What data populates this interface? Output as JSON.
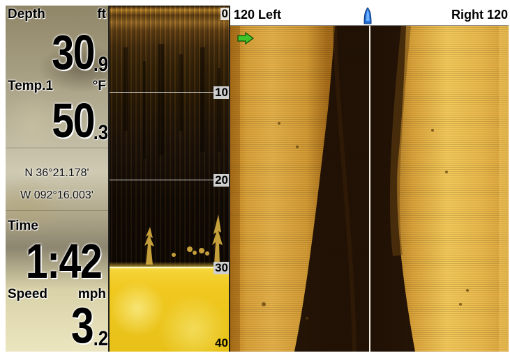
{
  "info": {
    "depth_label": "Depth",
    "depth_unit": "ft",
    "depth_whole": "30",
    "depth_frac": ".9",
    "temp_label": "Temp.1",
    "temp_unit": "°F",
    "temp_whole": "50",
    "temp_frac": ".3",
    "latitude": "N 36°21.178'",
    "longitude": "W 092°16.003'",
    "time_label": "Time",
    "time_value": "1:42",
    "speed_label": "Speed",
    "speed_unit": "mph",
    "speed_whole": "3",
    "speed_frac": ".2"
  },
  "sonar_2d": {
    "scale_labels": [
      "0",
      "10",
      "20",
      "30",
      "40"
    ],
    "max_depth_ft": 40
  },
  "side_imaging": {
    "left_label": "120 Left",
    "right_label": "Right 120",
    "boat_icon": "boat-icon",
    "marker_icon": "green-arrow-icon"
  },
  "colors": {
    "sonar_gold": "#e3b04a",
    "bottom_yellow": "#f0c81f",
    "arrow_green": "#3ec42a",
    "boat_blue": "#1f6fd8"
  }
}
